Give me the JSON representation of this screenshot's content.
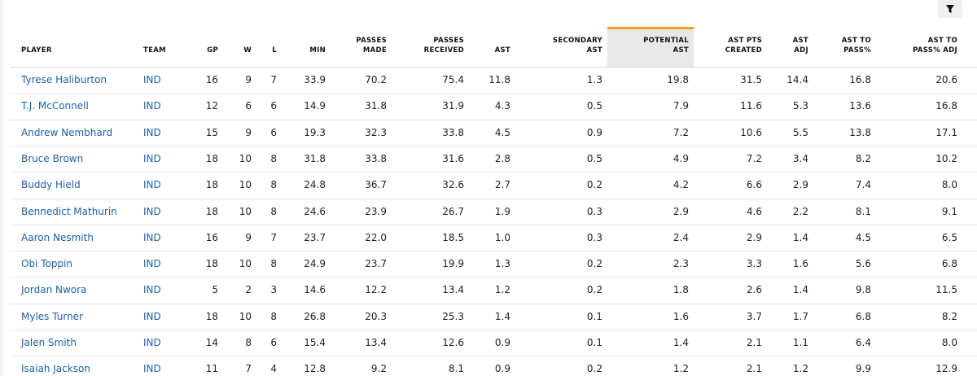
{
  "table": {
    "headers": [
      [
        "PLAYER"
      ],
      [
        "TEAM"
      ],
      [
        "GP"
      ],
      [
        "W"
      ],
      [
        "L"
      ],
      [
        "MIN"
      ],
      [
        "PASSES",
        "MADE"
      ],
      [
        "PASSES",
        "RECEIVED"
      ],
      [
        "AST"
      ],
      [
        "SECONDARY",
        "AST"
      ],
      [
        "POTENTIAL",
        "AST"
      ],
      [
        "AST PTS",
        "CREATED"
      ],
      [
        "AST",
        "ADJ"
      ],
      [
        "AST TO",
        "PASS%"
      ],
      [
        "AST TO",
        "PASS% ADJ"
      ]
    ],
    "rows": [
      [
        "Tyrese Haliburton",
        "IND",
        "16",
        "9",
        "7",
        "33.9",
        "70.2",
        "75.4",
        "11.8",
        "1.3",
        "19.8",
        "31.5",
        "14.4",
        "16.8",
        "20.6"
      ],
      [
        "T.J. McConnell",
        "IND",
        "12",
        "6",
        "6",
        "14.9",
        "31.8",
        "31.9",
        "4.3",
        "0.5",
        "7.9",
        "11.6",
        "5.3",
        "13.6",
        "16.8"
      ],
      [
        "Andrew Nembhard",
        "IND",
        "15",
        "9",
        "6",
        "19.3",
        "32.3",
        "33.8",
        "4.5",
        "0.9",
        "7.2",
        "10.6",
        "5.5",
        "13.8",
        "17.1"
      ],
      [
        "Bruce Brown",
        "IND",
        "18",
        "10",
        "8",
        "31.8",
        "33.8",
        "31.6",
        "2.8",
        "0.5",
        "4.9",
        "7.2",
        "3.4",
        "8.2",
        "10.2"
      ],
      [
        "Buddy Hield",
        "IND",
        "18",
        "10",
        "8",
        "24.8",
        "36.7",
        "32.6",
        "2.7",
        "0.2",
        "4.2",
        "6.6",
        "2.9",
        "7.4",
        "8.0"
      ],
      [
        "Bennedict Mathurin",
        "IND",
        "18",
        "10",
        "8",
        "24.6",
        "23.9",
        "26.7",
        "1.9",
        "0.3",
        "2.9",
        "4.6",
        "2.2",
        "8.1",
        "9.1"
      ],
      [
        "Aaron Nesmith",
        "IND",
        "16",
        "9",
        "7",
        "23.7",
        "22.0",
        "18.5",
        "1.0",
        "0.3",
        "2.4",
        "2.9",
        "1.4",
        "4.5",
        "6.5"
      ],
      [
        "Obi Toppin",
        "IND",
        "18",
        "10",
        "8",
        "24.9",
        "23.7",
        "19.9",
        "1.3",
        "0.2",
        "2.3",
        "3.3",
        "1.6",
        "5.6",
        "6.8"
      ],
      [
        "Jordan Nwora",
        "IND",
        "5",
        "2",
        "3",
        "14.6",
        "12.2",
        "13.4",
        "1.2",
        "0.2",
        "1.8",
        "2.6",
        "1.4",
        "9.8",
        "11.5"
      ],
      [
        "Myles Turner",
        "IND",
        "18",
        "10",
        "8",
        "26.8",
        "20.3",
        "25.3",
        "1.4",
        "0.1",
        "1.6",
        "3.7",
        "1.7",
        "6.8",
        "8.2"
      ],
      [
        "Jalen Smith",
        "IND",
        "14",
        "8",
        "6",
        "15.4",
        "13.4",
        "12.6",
        "0.9",
        "0.1",
        "1.4",
        "2.1",
        "1.1",
        "6.4",
        "8.0"
      ],
      [
        "Isaiah Jackson",
        "IND",
        "11",
        "7",
        "4",
        "12.8",
        "9.2",
        "8.1",
        "0.9",
        "0.2",
        "1.2",
        "2.1",
        "1.2",
        "9.9",
        "12.9"
      ]
    ]
  }
}
